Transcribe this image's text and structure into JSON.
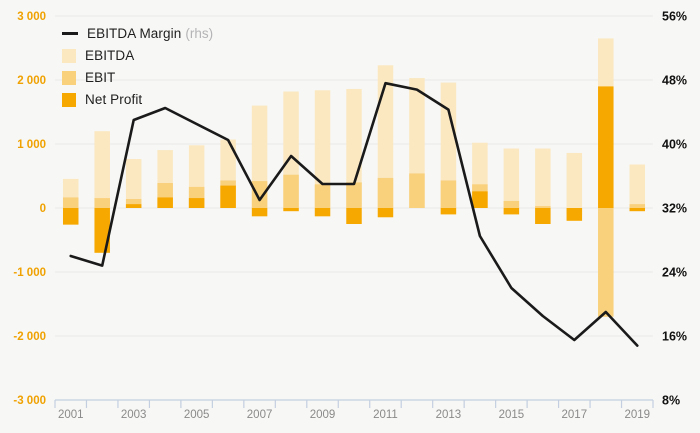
{
  "chart_data": {
    "type": "combo-bar-line",
    "title": "",
    "x": [
      2001,
      2002,
      2003,
      2004,
      2005,
      2006,
      2007,
      2008,
      2009,
      2010,
      2011,
      2012,
      2013,
      2014,
      2015,
      2016,
      2017,
      2018,
      2019
    ],
    "series": [
      {
        "name": "EBITDA",
        "type": "bar",
        "color": "#FBE8C1",
        "values": [
          455,
          1200,
          765,
          905,
          980,
          1070,
          1600,
          1820,
          1840,
          1860,
          2230,
          2030,
          1960,
          1020,
          930,
          930,
          860,
          2650,
          680
        ]
      },
      {
        "name": "EBIT",
        "type": "bar",
        "color": "#F9D07C",
        "values": [
          165,
          155,
          140,
          390,
          330,
          430,
          420,
          520,
          370,
          400,
          470,
          540,
          430,
          370,
          110,
          30,
          -100,
          -1700,
          60
        ]
      },
      {
        "name": "Net Profit",
        "type": "bar",
        "color": "#F7A800",
        "values": [
          -260,
          -700,
          60,
          165,
          155,
          350,
          -130,
          -50,
          -130,
          -250,
          -145,
          0,
          -100,
          260,
          -100,
          -250,
          -200,
          1900,
          -50
        ]
      },
      {
        "name": "EBITDA Margin",
        "type": "line",
        "axis": "right",
        "color": "#1a1a1a",
        "values": [
          26,
          24.8,
          43,
          44.5,
          42.5,
          40.5,
          33,
          38.5,
          35,
          35,
          47.6,
          46.8,
          44.3,
          28.5,
          22,
          18.5,
          15.5,
          19,
          14.8
        ]
      }
    ],
    "left_axis": {
      "min": -3000,
      "max": 3000,
      "step": 1000,
      "ticks": [
        "3 000",
        "2 000",
        "1 000",
        "0",
        "-1 000",
        "-2 000",
        "-3 000"
      ],
      "label_color": "#F0A202"
    },
    "right_axis": {
      "min": 8,
      "max": 56,
      "step": 8,
      "ticks": [
        "56%",
        "48%",
        "40%",
        "32%",
        "24%",
        "16%",
        "8%"
      ],
      "label_color": "#111111"
    },
    "x_axis": {
      "labels": [
        "2001",
        "2003",
        "2005",
        "2007",
        "2009",
        "2011",
        "2013",
        "2015",
        "2017",
        "2019"
      ],
      "axis_color": "#c3cfe0",
      "label_color": "#8a8a8a"
    },
    "legend": [
      {
        "label": "EBITDA Margin",
        "suffix": "(rhs)",
        "marker": "line"
      },
      {
        "label": "EBITDA",
        "suffix": "",
        "marker": "swatch"
      },
      {
        "label": "EBIT",
        "suffix": "",
        "marker": "swatch"
      },
      {
        "label": "Net Profit",
        "suffix": "",
        "marker": "swatch"
      }
    ],
    "background": "#f7f7f5",
    "gridline_color": "#e8e8e6",
    "grid": true,
    "legend_position": "top-left"
  }
}
